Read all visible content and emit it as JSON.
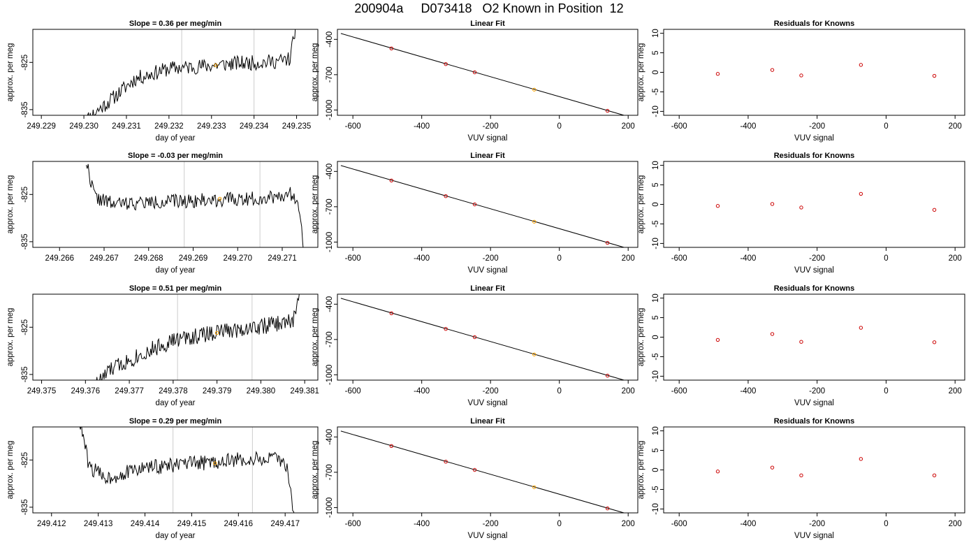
{
  "page_title": "200904a     D073418   O2 Known in Position  12",
  "colors": {
    "trace": "#000000",
    "vline": "#cccccc",
    "highlight": "#ffa500",
    "known_point": "#cc0000",
    "fit_line": "#000000"
  },
  "chart_data": [
    {
      "type": "line",
      "row": 1,
      "title": "Slope =  0.36  per meg/min",
      "xlabel": "day of year",
      "ylabel": "approx. per meg",
      "xlim": [
        249.2288,
        249.2355
      ],
      "ylim": [
        -836.2,
        -818
      ],
      "xticks": [
        "249.229",
        "249.230",
        "249.231",
        "249.232",
        "249.233",
        "249.234",
        "249.235"
      ],
      "yticks": [
        "-825",
        "-835"
      ],
      "vlines": [
        249.2323,
        249.234
      ],
      "highlight": {
        "x": 249.2331,
        "y": -825.6
      },
      "trace": {
        "x_start": 249.23,
        "x_end": 249.235,
        "baseline": [
          [
            249.23,
            -837.5
          ],
          [
            249.2306,
            -833.2
          ],
          [
            249.2312,
            -828.5
          ],
          [
            249.232,
            -826.3
          ],
          [
            249.2328,
            -825.8
          ],
          [
            249.2336,
            -825.2
          ],
          [
            249.2342,
            -825.0
          ],
          [
            249.2347,
            -824.6
          ],
          [
            249.23485,
            -824.2
          ],
          [
            249.235,
            -816.0
          ]
        ],
        "wiggle": 1.6,
        "seed": 11
      }
    },
    {
      "type": "line",
      "row": 2,
      "title": "Slope =  -0.03  per meg/min",
      "xlabel": "day of year",
      "ylabel": "approx. per meg",
      "xlim": [
        249.2654,
        249.2718
      ],
      "ylim": [
        -836.2,
        -818
      ],
      "xticks": [
        "249.266",
        "249.267",
        "249.268",
        "249.269",
        "249.270",
        "249.271"
      ],
      "yticks": [
        "-825",
        "-835"
      ],
      "vlines": [
        249.2688,
        249.2705
      ],
      "highlight": {
        "x": 249.2696,
        "y": -825.9
      },
      "trace": {
        "x_start": 249.2666,
        "x_end": 249.2715,
        "baseline": [
          [
            249.2666,
            -818.0
          ],
          [
            249.2667,
            -822.0
          ],
          [
            249.2668,
            -825.6
          ],
          [
            249.2672,
            -827.0
          ],
          [
            249.269,
            -826.3
          ],
          [
            249.2705,
            -825.8
          ],
          [
            249.27125,
            -824.8
          ],
          [
            249.2714,
            -828.0
          ],
          [
            249.2715,
            -838.0
          ]
        ],
        "wiggle": 1.5,
        "seed": 22
      }
    },
    {
      "type": "line",
      "row": 3,
      "title": "Slope =  0.51  per meg/min",
      "xlabel": "day of year",
      "ylabel": "approx. per meg",
      "xlim": [
        249.3748,
        249.3813
      ],
      "ylim": [
        -836.2,
        -818
      ],
      "xticks": [
        "249.375",
        "249.376",
        "249.377",
        "249.378",
        "249.379",
        "249.380",
        "249.381"
      ],
      "yticks": [
        "-825",
        "-835"
      ],
      "vlines": [
        249.3781,
        249.3798
      ],
      "highlight": {
        "x": 249.379,
        "y": -826.2
      },
      "trace": {
        "x_start": 249.3762,
        "x_end": 249.3809,
        "baseline": [
          [
            249.3762,
            -837.5
          ],
          [
            249.3766,
            -833.8
          ],
          [
            249.3772,
            -831.0
          ],
          [
            249.378,
            -827.8
          ],
          [
            249.379,
            -826.0
          ],
          [
            249.38,
            -824.8
          ],
          [
            249.3806,
            -824.0
          ],
          [
            249.38075,
            -823.5
          ],
          [
            249.3809,
            -816.0
          ]
        ],
        "wiggle": 1.8,
        "seed": 33
      }
    },
    {
      "type": "line",
      "row": 4,
      "title": "Slope =  0.29  per meg/min",
      "xlabel": "day of year",
      "ylabel": "approx. per meg",
      "xlim": [
        249.4116,
        249.4177
      ],
      "ylim": [
        -836.2,
        -818
      ],
      "xticks": [
        "249.412",
        "249.413",
        "249.414",
        "249.415",
        "249.416",
        "249.417"
      ],
      "yticks": [
        "-825",
        "-835"
      ],
      "vlines": [
        249.4146,
        249.4163
      ],
      "highlight": {
        "x": 249.4155,
        "y": -825.7
      },
      "trace": {
        "x_start": 249.4126,
        "x_end": 249.4172,
        "baseline": [
          [
            249.4126,
            -817.0
          ],
          [
            249.4127,
            -821.0
          ],
          [
            249.4128,
            -826.5
          ],
          [
            249.4132,
            -828.8
          ],
          [
            249.414,
            -826.6
          ],
          [
            249.415,
            -825.8
          ],
          [
            249.416,
            -825.0
          ],
          [
            249.4168,
            -824.8
          ],
          [
            249.41705,
            -826.2
          ],
          [
            249.4172,
            -838.0
          ]
        ],
        "wiggle": 1.6,
        "seed": 44
      }
    },
    {
      "type": "scatter",
      "row": 1,
      "title": "Linear Fit",
      "xlabel": "VUV signal",
      "ylabel": "approx. per meg",
      "xlim": [
        -645,
        228
      ],
      "ylim": [
        -1045,
        -315
      ],
      "xticks": [
        "-600",
        "-400",
        "-200",
        "0",
        "200"
      ],
      "yticks": [
        "-400",
        "-700",
        "-1000"
      ],
      "fit_line": [
        [
          -635,
          -350
        ],
        [
          220,
          -1072
        ]
      ],
      "points": [
        [
          -488,
          -477
        ],
        [
          -330,
          -610
        ],
        [
          -246,
          -680
        ],
        [
          -73,
          -827
        ],
        [
          140,
          -1007
        ]
      ],
      "highlight_index": 3
    },
    {
      "type": "scatter",
      "row": 2,
      "title": "Linear Fit",
      "xlabel": "VUV signal",
      "ylabel": "approx. per meg",
      "xlim": [
        -645,
        228
      ],
      "ylim": [
        -1045,
        -315
      ],
      "xticks": [
        "-600",
        "-400",
        "-200",
        "0",
        "200"
      ],
      "yticks": [
        "-400",
        "-700",
        "-1000"
      ],
      "fit_line": [
        [
          -635,
          -350
        ],
        [
          220,
          -1072
        ]
      ],
      "points": [
        [
          -488,
          -477
        ],
        [
          -330,
          -610
        ],
        [
          -246,
          -680
        ],
        [
          -73,
          -827
        ],
        [
          140,
          -1007
        ]
      ],
      "highlight_index": 3
    },
    {
      "type": "scatter",
      "row": 3,
      "title": "Linear Fit",
      "xlabel": "VUV signal",
      "ylabel": "approx. per meg",
      "xlim": [
        -645,
        228
      ],
      "ylim": [
        -1045,
        -315
      ],
      "xticks": [
        "-600",
        "-400",
        "-200",
        "0",
        "200"
      ],
      "yticks": [
        "-400",
        "-700",
        "-1000"
      ],
      "fit_line": [
        [
          -635,
          -350
        ],
        [
          220,
          -1072
        ]
      ],
      "points": [
        [
          -488,
          -477
        ],
        [
          -330,
          -610
        ],
        [
          -246,
          -680
        ],
        [
          -73,
          -827
        ],
        [
          140,
          -1007
        ]
      ],
      "highlight_index": 3
    },
    {
      "type": "scatter",
      "row": 4,
      "title": "Linear Fit",
      "xlabel": "VUV signal",
      "ylabel": "approx. per meg",
      "xlim": [
        -645,
        228
      ],
      "ylim": [
        -1045,
        -315
      ],
      "xticks": [
        "-600",
        "-400",
        "-200",
        "0",
        "200"
      ],
      "yticks": [
        "-400",
        "-700",
        "-1000"
      ],
      "fit_line": [
        [
          -635,
          -350
        ],
        [
          220,
          -1072
        ]
      ],
      "points": [
        [
          -488,
          -477
        ],
        [
          -330,
          -610
        ],
        [
          -246,
          -680
        ],
        [
          -73,
          -827
        ],
        [
          140,
          -1007
        ]
      ],
      "highlight_index": 3
    },
    {
      "type": "scatter",
      "row": 1,
      "title": "Residuals for Knowns",
      "xlabel": "VUV signal",
      "ylabel": "approx. per meg",
      "xlim": [
        -645,
        228
      ],
      "ylim": [
        -11,
        11
      ],
      "xticks": [
        "-600",
        "-400",
        "-200",
        "0",
        "200"
      ],
      "yticks": [
        "-10",
        "-5",
        "0",
        "5",
        "10"
      ],
      "points": [
        [
          -488,
          -0.4
        ],
        [
          -330,
          0.6
        ],
        [
          -246,
          -0.8
        ],
        [
          -73,
          1.9
        ],
        [
          140,
          -0.9
        ]
      ]
    },
    {
      "type": "scatter",
      "row": 2,
      "title": "Residuals for Knowns",
      "xlabel": "VUV signal",
      "ylabel": "approx. per meg",
      "xlim": [
        -645,
        228
      ],
      "ylim": [
        -11,
        11
      ],
      "xticks": [
        "-600",
        "-400",
        "-200",
        "0",
        "200"
      ],
      "yticks": [
        "-10",
        "-5",
        "0",
        "5",
        "10"
      ],
      "points": [
        [
          -488,
          -0.4
        ],
        [
          -330,
          0.1
        ],
        [
          -246,
          -0.8
        ],
        [
          -73,
          2.7
        ],
        [
          140,
          -1.4
        ]
      ]
    },
    {
      "type": "scatter",
      "row": 3,
      "title": "Residuals for Knowns",
      "xlabel": "VUV signal",
      "ylabel": "approx. per meg",
      "xlim": [
        -645,
        228
      ],
      "ylim": [
        -11,
        11
      ],
      "xticks": [
        "-600",
        "-400",
        "-200",
        "0",
        "200"
      ],
      "yticks": [
        "-10",
        "-5",
        "0",
        "5",
        "10"
      ],
      "points": [
        [
          -488,
          -0.7
        ],
        [
          -330,
          0.8
        ],
        [
          -246,
          -1.2
        ],
        [
          -73,
          2.4
        ],
        [
          140,
          -1.3
        ]
      ]
    },
    {
      "type": "scatter",
      "row": 4,
      "title": "Residuals for Knowns",
      "xlabel": "VUV signal",
      "ylabel": "approx. per meg",
      "xlim": [
        -645,
        228
      ],
      "ylim": [
        -11,
        11
      ],
      "xticks": [
        "-600",
        "-400",
        "-200",
        "0",
        "200"
      ],
      "yticks": [
        "-10",
        "-5",
        "0",
        "5",
        "10"
      ],
      "points": [
        [
          -488,
          -0.4
        ],
        [
          -330,
          0.6
        ],
        [
          -246,
          -1.4
        ],
        [
          -73,
          2.8
        ],
        [
          140,
          -1.4
        ]
      ]
    }
  ]
}
